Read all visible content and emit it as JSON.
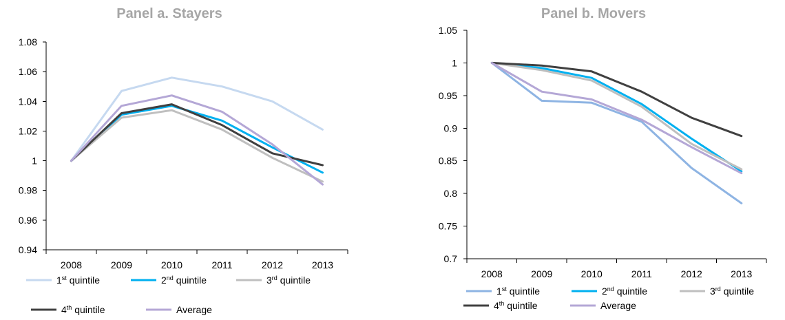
{
  "chart_data": [
    {
      "type": "line",
      "title": "Panel a. Stayers",
      "xlabel": "",
      "ylabel": "",
      "categories": [
        "2008",
        "2009",
        "2010",
        "2011",
        "2012",
        "2013"
      ],
      "ylim": [
        0.94,
        1.08
      ],
      "yticks": [
        "0.94",
        "0.96",
        "0.98",
        "1",
        "1.02",
        "1.04",
        "1.06",
        "1.08"
      ],
      "grid": false,
      "legend_position": "bottom",
      "series": [
        {
          "name": "1st quintile",
          "num": "1",
          "suffix": "st",
          "rest": " quintile",
          "color": "#c6d9f0",
          "values": [
            1.0,
            1.047,
            1.056,
            1.05,
            1.04,
            1.021
          ]
        },
        {
          "name": "2nd quintile",
          "num": "2",
          "suffix": "nd",
          "rest": " quintile",
          "color": "#00b0f0",
          "values": [
            1.0,
            1.031,
            1.037,
            1.027,
            1.009,
            0.992
          ]
        },
        {
          "name": "3rd quintile",
          "num": "3",
          "suffix": "rd",
          "rest": " quintile",
          "color": "#bfbfbf",
          "values": [
            1.0,
            1.029,
            1.034,
            1.021,
            1.002,
            0.986
          ]
        },
        {
          "name": "4th quintile",
          "num": "4",
          "suffix": "th",
          "rest": " quintile",
          "color": "#404040",
          "values": [
            1.0,
            1.032,
            1.038,
            1.024,
            1.005,
            0.997
          ]
        },
        {
          "name": "Average",
          "num": "",
          "suffix": "",
          "rest": "Average",
          "color": "#b4a7d6",
          "values": [
            1.0,
            1.037,
            1.044,
            1.033,
            1.011,
            0.984
          ]
        }
      ]
    },
    {
      "type": "line",
      "title": "Panel b. Movers",
      "xlabel": "",
      "ylabel": "",
      "categories": [
        "2008",
        "2009",
        "2010",
        "2011",
        "2012",
        "2013"
      ],
      "ylim": [
        0.7,
        1.05
      ],
      "yticks": [
        "0.7",
        "0.75",
        "0.8",
        "0.85",
        "0.9",
        "0.95",
        "1",
        "1.05"
      ],
      "grid": false,
      "legend_position": "bottom",
      "series": [
        {
          "name": "1st quintile",
          "num": "1",
          "suffix": "st",
          "rest": " quintile",
          "color": "#8eb4e3",
          "values": [
            1.0,
            0.942,
            0.939,
            0.91,
            0.839,
            0.785
          ]
        },
        {
          "name": "2nd quintile",
          "num": "2",
          "suffix": "nd",
          "rest": " quintile",
          "color": "#00b0f0",
          "values": [
            1.0,
            0.992,
            0.977,
            0.937,
            0.884,
            0.834
          ]
        },
        {
          "name": "3rd quintile",
          "num": "3",
          "suffix": "rd",
          "rest": " quintile",
          "color": "#bfbfbf",
          "values": [
            1.0,
            0.989,
            0.973,
            0.933,
            0.876,
            0.837
          ]
        },
        {
          "name": "4th quintile",
          "num": "4",
          "suffix": "th",
          "rest": " quintile",
          "color": "#404040",
          "values": [
            1.0,
            0.996,
            0.987,
            0.956,
            0.916,
            0.888
          ]
        },
        {
          "name": "Average",
          "num": "",
          "suffix": "",
          "rest": "Average",
          "color": "#b4a7d6",
          "values": [
            1.0,
            0.956,
            0.944,
            0.913,
            0.871,
            0.831
          ]
        }
      ]
    }
  ]
}
